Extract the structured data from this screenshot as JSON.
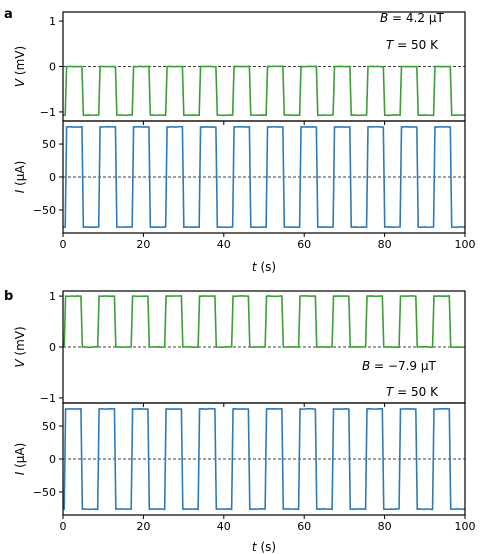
{
  "chart_data": [
    {
      "panel": "a",
      "type": "line",
      "annotations": [
        {
          "var": "B",
          "text": " = 4.2 μT"
        },
        {
          "var": "T",
          "text": " = 50 K"
        }
      ],
      "xlabel_var": "t",
      "xlabel_unit": " (s)",
      "xlim": [
        0,
        100
      ],
      "xticks": [
        "0",
        "20",
        "40",
        "60",
        "80",
        "100"
      ],
      "subplots": [
        {
          "ylabel_var": "V",
          "ylabel_unit": " (mV)",
          "ylim": [
            -1.2,
            1.2
          ],
          "yticks": [
            "-1",
            "0",
            "1"
          ],
          "color": "#3a9e35",
          "series": [
            {
              "period": 8.33,
              "phase": 0.55,
              "high": 0.0,
              "low": -1.07,
              "duty": 0.5
            }
          ]
        },
        {
          "ylabel_var": "I",
          "ylabel_unit": " (μA)",
          "ylim": [
            -85,
            85
          ],
          "yticks": [
            "-50",
            "0",
            "50"
          ],
          "color": "#2e7ab8",
          "series": [
            {
              "period": 8.33,
              "phase": 0.55,
              "high": 76,
              "low": -76,
              "duty": 0.5
            }
          ]
        }
      ]
    },
    {
      "panel": "b",
      "type": "line",
      "annotations": [
        {
          "var": "B",
          "text": " = −7.9 μT"
        },
        {
          "var": "T",
          "text": " = 50 K"
        }
      ],
      "xlabel_var": "t",
      "xlabel_unit": " (s)",
      "xlim": [
        0,
        100
      ],
      "xticks": [
        "0",
        "20",
        "40",
        "60",
        "80",
        "100"
      ],
      "subplots": [
        {
          "ylabel_var": "V",
          "ylabel_unit": " (mV)",
          "ylim": [
            -1.1,
            1.1
          ],
          "yticks": [
            "-1",
            "0",
            "1"
          ],
          "color": "#3a9e35",
          "series": [
            {
              "period": 8.33,
              "phase": 0.3,
              "high": 1.0,
              "low": 0.0,
              "duty": 0.5
            }
          ]
        },
        {
          "ylabel_var": "I",
          "ylabel_unit": " (μA)",
          "ylim": [
            -85,
            85
          ],
          "yticks": [
            "-50",
            "0",
            "50"
          ],
          "color": "#2e7ab8",
          "series": [
            {
              "period": 8.33,
              "phase": 0.3,
              "high": 76,
              "low": -76,
              "duty": 0.5
            }
          ]
        }
      ]
    }
  ]
}
